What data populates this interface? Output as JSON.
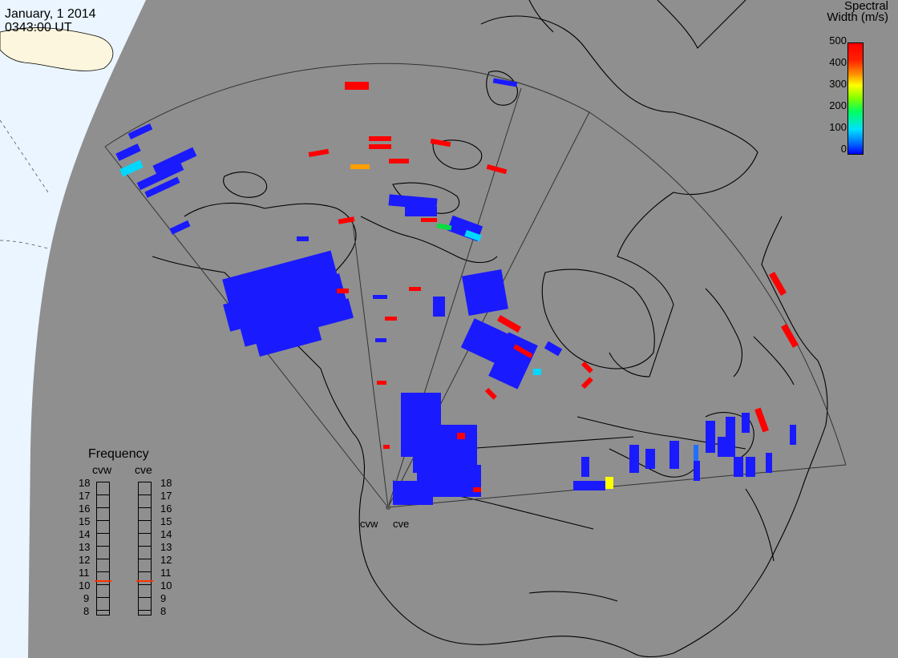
{
  "timestamp": {
    "date": "January, 1 2014",
    "time": "0343:00 UT"
  },
  "colorbar": {
    "title_line1": "Spectral",
    "title_line2": "Width (m/s)",
    "ticks": [
      "500",
      "400",
      "300",
      "200",
      "100",
      "0"
    ],
    "range": [
      0,
      500
    ]
  },
  "frequency_panel": {
    "title": "Frequency",
    "radars": [
      {
        "label": "cvw",
        "selected_mhz": 11,
        "marker_color": "#ff3000"
      },
      {
        "label": "cve",
        "selected_mhz": 11,
        "marker_color": "#ff3000"
      }
    ],
    "scale": [
      "18",
      "17",
      "16",
      "15",
      "14",
      "13",
      "12",
      "11",
      "10",
      "9",
      "8"
    ]
  },
  "stations": [
    {
      "label": "cvw"
    },
    {
      "label": "cve"
    }
  ],
  "colors": {
    "background": "#8f8f8f",
    "land_outline": "#000000",
    "night_side": "#eef7ff",
    "low_width": "#1a1aff",
    "high_width": "#ff0000"
  }
}
